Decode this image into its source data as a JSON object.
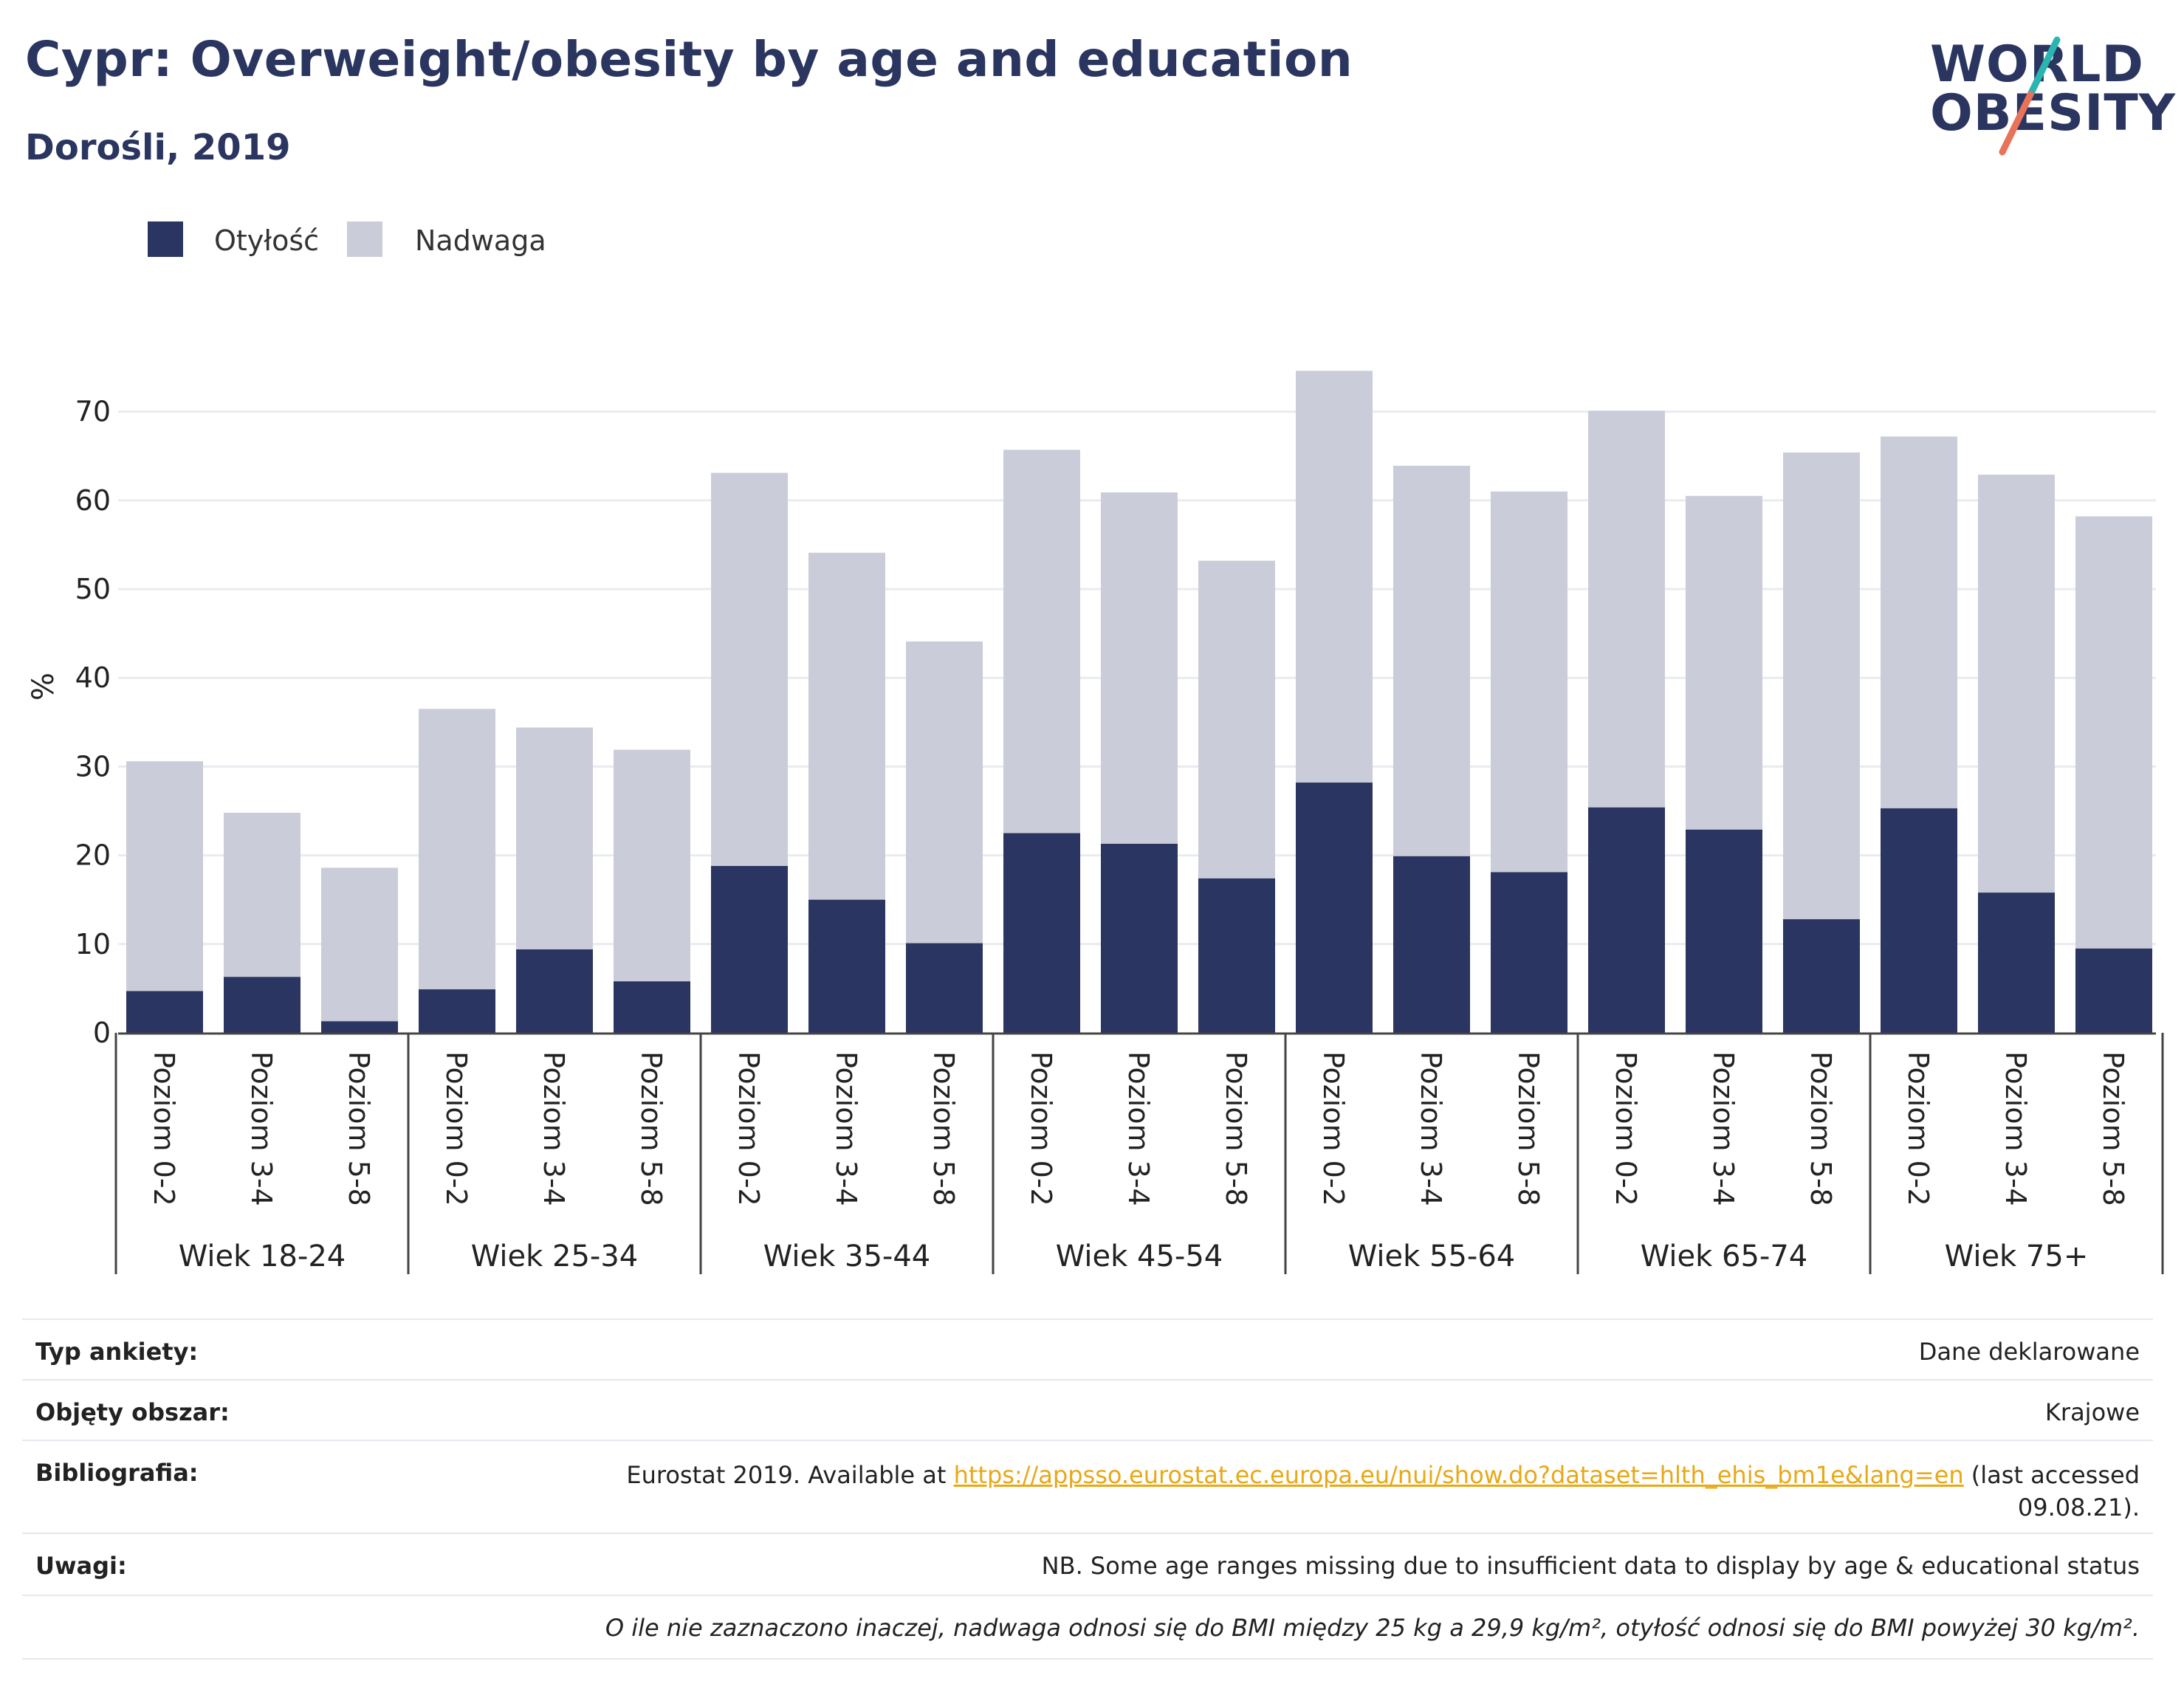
{
  "header": {
    "title": "Cypr: Overweight/obesity by age and education",
    "subtitle": "Dorośli, 2019"
  },
  "logo": {
    "line1": "WORLD",
    "line2": "OBESITY"
  },
  "colors": {
    "obesity": "#2a3561",
    "overweight": "#cacdd9",
    "title": "#2a3560",
    "link": "#e8a817",
    "logo_accent_teal": "#2bb5b0",
    "logo_accent_coral": "#e8735a"
  },
  "legend": [
    {
      "label": "Otyłość",
      "color": "#2a3561"
    },
    {
      "label": "Nadwaga",
      "color": "#cacdd9"
    }
  ],
  "chart_data": {
    "type": "bar",
    "stacked": true,
    "ylabel": "%",
    "ylim": [
      0,
      75
    ],
    "yticks": [
      0,
      10,
      20,
      30,
      40,
      50,
      60,
      70
    ],
    "grid": true,
    "legend_position": "top-left",
    "groups": [
      "Wiek 18-24",
      "Wiek 25-34",
      "Wiek 35-44",
      "Wiek 45-54",
      "Wiek 55-64",
      "Wiek 65-74",
      "Wiek 75+"
    ],
    "subcategories": [
      "Poziom 0-2",
      "Poziom 3-4",
      "Poziom 5-8"
    ],
    "series": [
      {
        "name": "Otyłość",
        "values": [
          4.7,
          6.3,
          1.3,
          4.9,
          9.4,
          5.8,
          18.8,
          15.0,
          10.1,
          22.5,
          21.3,
          17.4,
          28.2,
          19.9,
          18.1,
          25.4,
          22.9,
          12.8,
          25.3,
          15.8,
          9.5
        ]
      },
      {
        "name": "Nadwaga",
        "values": [
          25.9,
          18.5,
          17.3,
          31.6,
          25.0,
          26.1,
          44.3,
          39.1,
          34.0,
          43.2,
          39.6,
          35.8,
          46.4,
          44.0,
          42.9,
          44.7,
          37.6,
          52.6,
          41.9,
          47.1,
          48.7
        ]
      }
    ],
    "totals": [
      30.6,
      24.8,
      18.6,
      36.5,
      34.4,
      31.9,
      63.1,
      54.1,
      44.1,
      65.7,
      60.9,
      53.2,
      74.6,
      63.9,
      61.0,
      70.1,
      60.5,
      65.4,
      67.2,
      62.9,
      58.2
    ]
  },
  "info": {
    "survey_type_label": "Typ ankiety:",
    "survey_type_value": "Dane deklarowane",
    "area_label": "Objęty obszar:",
    "area_value": "Krajowe",
    "bibliography_label": "Bibliografia:",
    "bibliography_prefix": "Eurostat 2019. Available at",
    "bibliography_link": "https://appsso.eurostat.ec.europa.eu/nui/show.do?dataset=hlth_ehis_bm1e&lang=en",
    "bibliography_suffix_1": "(last accessed",
    "bibliography_suffix_2": "09.08.21).",
    "notes_label": "Uwagi:",
    "notes_value": "NB. Some age ranges missing due to insufficient data to display by age & educational status",
    "definition": "O ile nie zaznaczono inaczej, nadwaga odnosi się do BMI między 25 kg a 29,9 kg/m², otyłość odnosi się do BMI powyżej 30 kg/m²."
  }
}
